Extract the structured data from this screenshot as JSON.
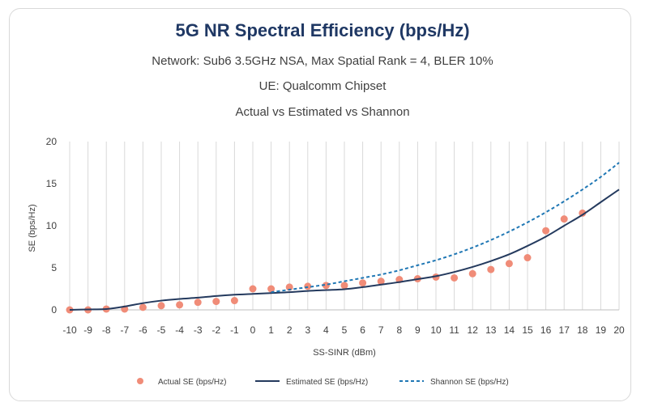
{
  "chart_data": {
    "type": "line",
    "title": "5G NR Spectral Efficiency (bps/Hz)",
    "subtitles": [
      "Network: Sub6 3.5GHz NSA, Max Spatial Rank = 4, BLER 10%",
      "UE: Qualcomm Chipset",
      "Actual vs Estimated vs Shannon"
    ],
    "xlabel": "SS-SINR (dBm)",
    "ylabel": "SE (bps/Hz)",
    "x": [
      -10,
      -9,
      -8,
      -7,
      -6,
      -5,
      -4,
      -3,
      -2,
      -1,
      0,
      1,
      2,
      3,
      4,
      5,
      6,
      7,
      8,
      9,
      10,
      11,
      12,
      13,
      14,
      15,
      16,
      17,
      18,
      19,
      20
    ],
    "xlim": [
      -10,
      20
    ],
    "ylim": [
      0,
      20
    ],
    "yticks": [
      0,
      5,
      10,
      15,
      20
    ],
    "grid": "vertical",
    "legend_position": "bottom",
    "series": [
      {
        "name": "Actual SE (bps/Hz)",
        "style": "markers",
        "color": "#f08c78",
        "x": [
          -10,
          -9,
          -8,
          -7,
          -6,
          -5,
          -4,
          -3,
          -2,
          -1,
          0,
          1,
          2,
          3,
          4,
          5,
          6,
          7,
          8,
          9,
          10,
          11,
          12,
          13,
          14,
          15,
          16,
          17,
          18
        ],
        "values": [
          0.0,
          0.0,
          0.1,
          0.1,
          0.3,
          0.5,
          0.6,
          0.9,
          1.0,
          1.1,
          2.5,
          2.5,
          2.7,
          2.8,
          2.9,
          2.9,
          3.2,
          3.4,
          3.6,
          3.7,
          3.9,
          3.8,
          4.3,
          4.8,
          5.5,
          6.2,
          9.4,
          10.8,
          11.5
        ]
      },
      {
        "name": "Estimated SE (bps/Hz)",
        "style": "solid",
        "color": "#243a5e",
        "x": [
          -10,
          -9,
          -8,
          -7,
          -6,
          -5,
          -4,
          -3,
          -2,
          -1,
          0,
          1,
          2,
          3,
          4,
          5,
          6,
          7,
          8,
          9,
          10,
          11,
          12,
          13,
          14,
          15,
          16,
          17,
          18,
          19,
          20
        ],
        "values": [
          0.0,
          0.05,
          0.1,
          0.4,
          0.8,
          1.1,
          1.3,
          1.45,
          1.65,
          1.8,
          1.9,
          2.0,
          2.1,
          2.25,
          2.35,
          2.45,
          2.7,
          3.0,
          3.3,
          3.65,
          4.0,
          4.5,
          5.1,
          5.8,
          6.6,
          7.6,
          8.7,
          10.0,
          11.3,
          12.8,
          14.3
        ]
      },
      {
        "name": "Shannon SE (bps/Hz)",
        "style": "dashed",
        "color": "#1f77b4",
        "x": [
          1,
          2,
          3,
          4,
          5,
          6,
          7,
          8,
          9,
          10,
          11,
          12,
          13,
          14,
          15,
          16,
          17,
          18,
          19,
          20
        ],
        "values": [
          2.1,
          2.4,
          2.7,
          3.0,
          3.4,
          3.8,
          4.2,
          4.7,
          5.3,
          5.9,
          6.6,
          7.4,
          8.3,
          9.3,
          10.4,
          11.6,
          12.9,
          14.3,
          15.8,
          17.5
        ]
      }
    ]
  }
}
